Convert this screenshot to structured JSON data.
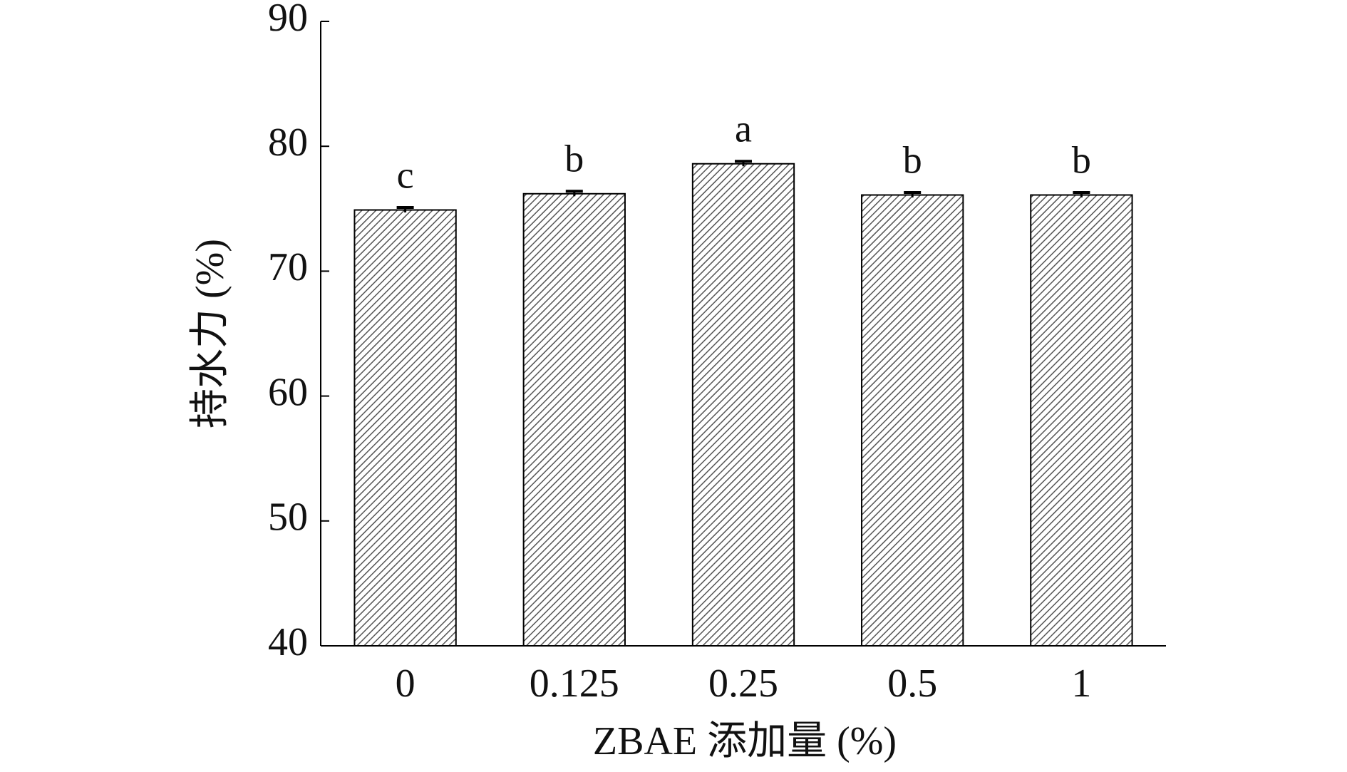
{
  "chart_data": {
    "type": "bar",
    "x_label": "ZBAE 添加量 (%)",
    "y_label": "持水力 (%)",
    "categories": [
      "0",
      "0.125",
      "0.25",
      "0.5",
      "1"
    ],
    "values": [
      74.9,
      76.2,
      78.6,
      76.1,
      76.1
    ],
    "errors": [
      0.2,
      0.2,
      0.2,
      0.2,
      0.2
    ],
    "letters": [
      "c",
      "b",
      "a",
      "b",
      "b"
    ],
    "color": "#555555",
    "ylim": [
      40,
      90
    ],
    "yticks": [
      40,
      50,
      60,
      70,
      80,
      90
    ],
    "grid": false
  }
}
